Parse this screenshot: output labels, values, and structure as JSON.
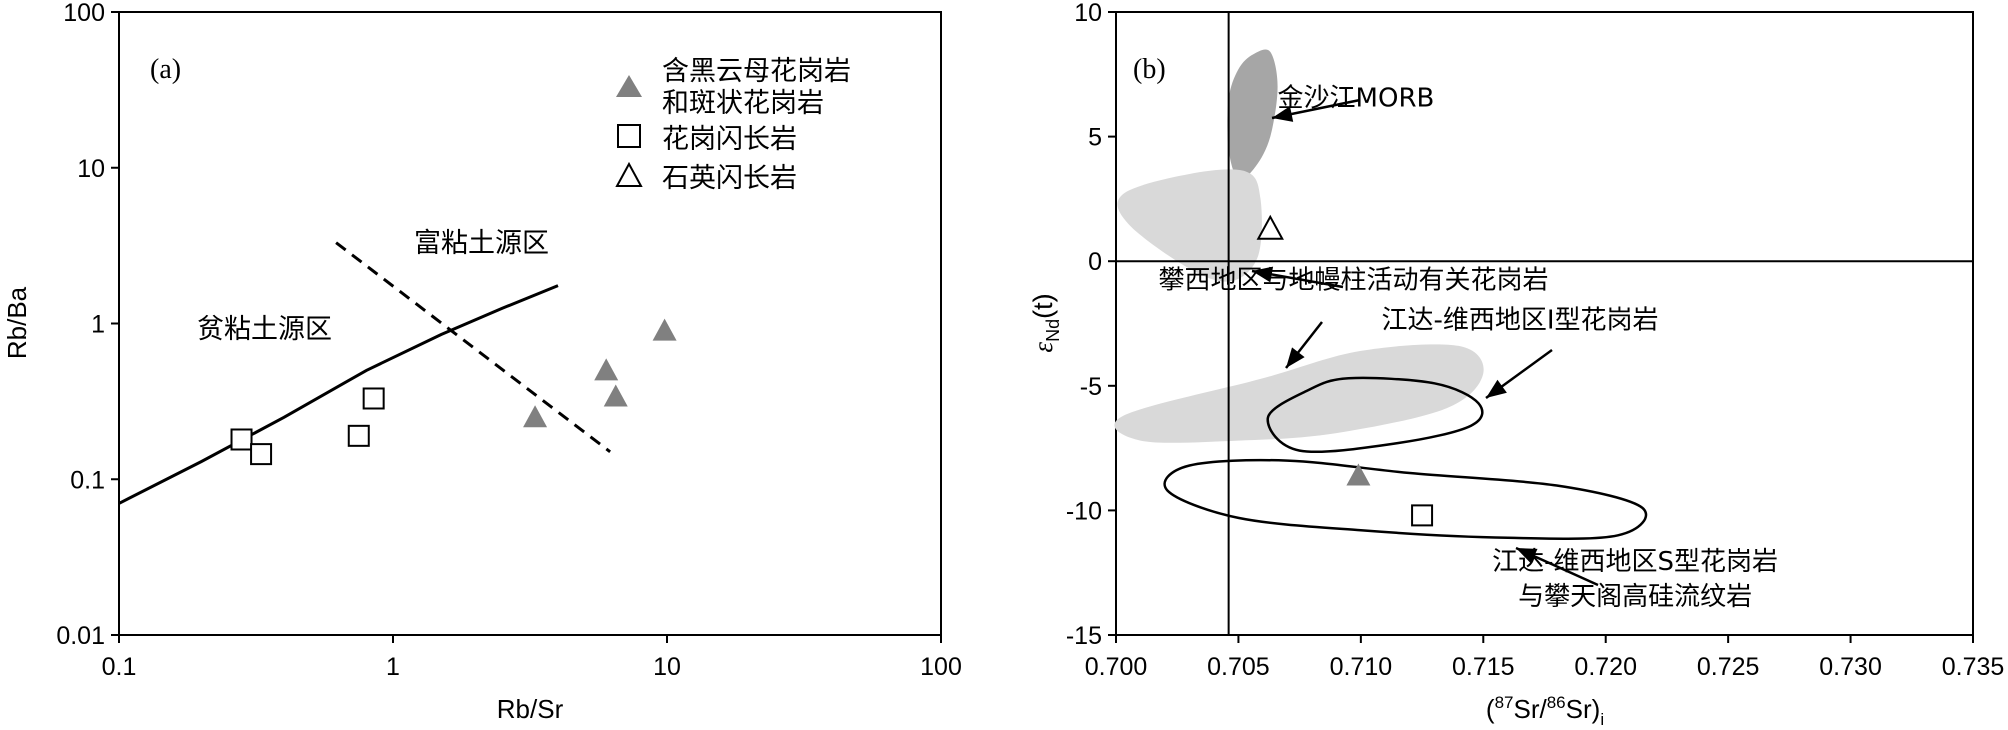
{
  "chart_data": [
    {
      "panel_label": "(a)",
      "type": "scatter",
      "xlabel": "Rb/Sr",
      "ylabel": "Rb/Ba",
      "xscale": "log",
      "yscale": "log",
      "xlim": [
        0.1,
        100
      ],
      "ylim": [
        0.01,
        100
      ],
      "x_ticks": [
        "0.1",
        "1",
        "10",
        "100"
      ],
      "y_ticks": [
        "0.01",
        "0.1",
        "1",
        "10",
        "100"
      ],
      "legend_position": "top-right",
      "series": [
        {
          "name": "含黑云母花岗岩和斑状花岗岩",
          "name_lines": [
            "含黑云母花岗岩",
            "和斑状花岗岩"
          ],
          "marker": "filled-triangle",
          "color": "#808080",
          "points": [
            [
              3.3,
              0.25
            ],
            [
              6.0,
              0.5
            ],
            [
              6.5,
              0.34
            ],
            [
              9.8,
              0.9
            ]
          ]
        },
        {
          "name": "花岗闪长岩",
          "marker": "open-square",
          "color": "#000000",
          "points": [
            [
              0.28,
              0.18
            ],
            [
              0.33,
              0.145
            ],
            [
              0.75,
              0.19
            ],
            [
              0.85,
              0.33
            ]
          ]
        },
        {
          "name": "石英闪长岩",
          "marker": "open-triangle",
          "color": "#000000",
          "points": []
        }
      ],
      "lines": [
        {
          "style": "solid",
          "points": [
            [
              0.1,
              0.07
            ],
            [
              0.2,
              0.13
            ],
            [
              0.4,
              0.25
            ],
            [
              0.8,
              0.5
            ],
            [
              1.5,
              0.85
            ],
            [
              2.5,
              1.25
            ],
            [
              4.0,
              1.75
            ]
          ]
        },
        {
          "style": "dashed",
          "points": [
            [
              0.62,
              3.3
            ],
            [
              6.2,
              0.15
            ]
          ]
        }
      ],
      "annotations": [
        {
          "text": "富粘土源区",
          "x": 2.1,
          "y": 5.4
        },
        {
          "text": "贫粘土源区",
          "x": 0.3,
          "y": 1.0
        }
      ]
    },
    {
      "panel_label": "(b)",
      "type": "scatter",
      "xlabel": "(87Sr/86Sr)i",
      "xlabel_parts": {
        "open": "(",
        "sup1": "87",
        "mid": "Sr/",
        "sup2": "86",
        "tail": "Sr)",
        "sub": "i"
      },
      "ylabel": "εNd(t)",
      "ylabel_parts": {
        "eps": "ε",
        "sub": "Nd",
        "tail": "(t)"
      },
      "xlim": [
        0.7,
        0.735
      ],
      "ylim": [
        -15,
        10
      ],
      "x_ticks": [
        "0.700",
        "0.705",
        "0.710",
        "0.715",
        "0.720",
        "0.725",
        "0.730",
        "0.735"
      ],
      "y_ticks": [
        "-15",
        "-10",
        "-5",
        "0",
        "5",
        "10"
      ],
      "reference_lines": {
        "x": 0.7046,
        "y": 0
      },
      "points": [
        {
          "marker": "open-triangle",
          "color": "#000000",
          "x": 0.7063,
          "y": 1.3
        },
        {
          "marker": "filled-triangle",
          "color": "#808080",
          "x": 0.7099,
          "y": -8.6
        },
        {
          "marker": "open-square",
          "color": "#000000",
          "x": 0.7125,
          "y": -10.2
        }
      ],
      "fields": [
        {
          "name": "金沙江MORB",
          "fill": "#a6a6a6",
          "outline": [
            [
              0.7056,
              8.3
            ],
            [
              0.7063,
              8.4
            ],
            [
              0.7066,
              7.0
            ],
            [
              0.7063,
              5.0
            ],
            [
              0.7057,
              3.8
            ],
            [
              0.705,
              3.3
            ],
            [
              0.7046,
              4.5
            ],
            [
              0.7046,
              6.5
            ],
            [
              0.705,
              7.7
            ]
          ]
        },
        {
          "name": "攀西地区与地幔柱活动有关花岗岩",
          "fill": "#d9d9d9",
          "outline": [
            [
              0.7003,
              2.7
            ],
            [
              0.703,
              3.5
            ],
            [
              0.7053,
              3.6
            ],
            [
              0.7059,
              2.5
            ],
            [
              0.7058,
              0.2
            ],
            [
              0.7047,
              -0.8
            ],
            [
              0.703,
              -0.3
            ],
            [
              0.7005,
              1.5
            ]
          ],
          "label_lines": [
            "攀西地区与地幔柱活动有关花岗岩"
          ]
        },
        {
          "name": "攀西地区与地幔柱活动有关花岗岩 (lower field)",
          "fill": "#d9d9d9",
          "outline": [
            [
              0.7003,
              -6.2
            ],
            [
              0.706,
              -4.7
            ],
            [
              0.71,
              -3.6
            ],
            [
              0.714,
              -3.4
            ],
            [
              0.715,
              -4.5
            ],
            [
              0.7135,
              -5.9
            ],
            [
              0.709,
              -6.9
            ],
            [
              0.705,
              -7.2
            ],
            [
              0.701,
              -7.2
            ]
          ]
        },
        {
          "name": "江达-维西地区I型花岗岩",
          "fill": "none",
          "outline": [
            [
              0.7095,
              -4.7
            ],
            [
              0.713,
              -4.9
            ],
            [
              0.7148,
              -5.7
            ],
            [
              0.7145,
              -6.6
            ],
            [
              0.7115,
              -7.3
            ],
            [
              0.7075,
              -7.6
            ],
            [
              0.7062,
              -6.3
            ],
            [
              0.7078,
              -5.2
            ]
          ]
        },
        {
          "name": "江达-维西地区S型花岗岩与攀天阁高硅流纹岩",
          "fill": "none",
          "outline": [
            [
              0.707,
              -8.0
            ],
            [
              0.712,
              -8.5
            ],
            [
              0.718,
              -9.0
            ],
            [
              0.7215,
              -9.9
            ],
            [
              0.7205,
              -11.0
            ],
            [
              0.716,
              -11.1
            ],
            [
              0.71,
              -10.8
            ],
            [
              0.705,
              -10.3
            ],
            [
              0.7021,
              -9.2
            ],
            [
              0.703,
              -8.2
            ]
          ],
          "label_lines": [
            "江达-维西地区S型花岗岩",
            "与攀天阁高硅流纹岩"
          ]
        }
      ],
      "field_labels": [
        {
          "text": "金沙江MORB",
          "x": 0.7098,
          "y": 6.2
        },
        {
          "text": "攀西地区与地幔柱活动有关花岗岩",
          "x": 0.7097,
          "y": -1.1
        },
        {
          "text": "江达-维西地区I型花岗岩",
          "x": 0.7165,
          "y": -2.7
        },
        {
          "text": "江达-维西地区S型花岗岩",
          "x": 0.7212,
          "y": -12.4
        },
        {
          "text": "与攀天阁高硅流纹岩",
          "x": 0.7212,
          "y": -13.8
        }
      ]
    }
  ]
}
